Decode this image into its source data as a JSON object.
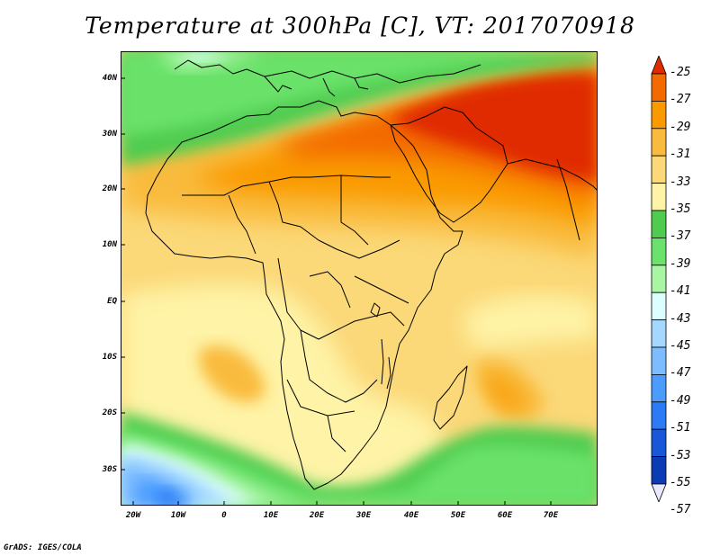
{
  "title": "Temperature at 300hPa [C], VT: 2017070918",
  "credit": "GrADS: IGES/COLA",
  "axes": {
    "lat_labels": [
      "40N",
      "30N",
      "20N",
      "10N",
      "EQ",
      "10S",
      "20S",
      "30S"
    ],
    "lon_labels": [
      "20W",
      "10W",
      "0",
      "10E",
      "20E",
      "30E",
      "40E",
      "50E",
      "60E",
      "70E"
    ]
  },
  "colorbar": {
    "labels": [
      "-25",
      "-27",
      "-29",
      "-31",
      "-33",
      "-35",
      "-37",
      "-39",
      "-41",
      "-43",
      "-45",
      "-47",
      "-49",
      "-51",
      "-53",
      "-55",
      "-57"
    ],
    "colors": [
      "#e02a00",
      "#f36a00",
      "#fa9a00",
      "#f9bb3e",
      "#fbd878",
      "#fef3a6",
      "#4fcc4f",
      "#6be26b",
      "#a8f5a3",
      "#dcfefe",
      "#a4d8ff",
      "#7cbcff",
      "#4c9cff",
      "#2c7af4",
      "#1858d8",
      "#0c3cb4",
      "#0a1570"
    ]
  }
}
